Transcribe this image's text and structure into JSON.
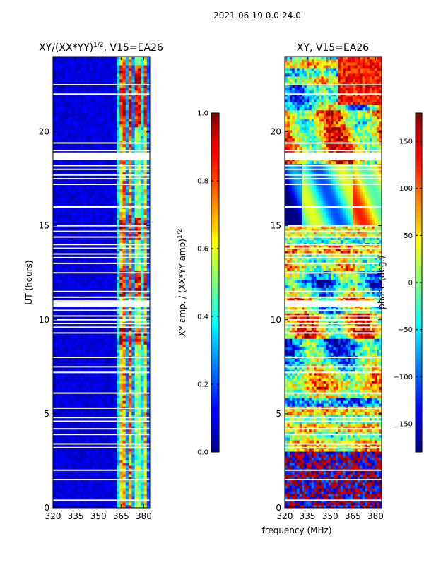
{
  "chart_data": [
    {
      "type": "heatmap",
      "id": "left",
      "title": "XY/(XX*YY)",
      "title_superscript": "1/2",
      "title_suffix": ", V15=EA26",
      "xlabel": "",
      "ylabel": "UT (hours)",
      "xlim": [
        320,
        384
      ],
      "ylim": [
        0,
        24
      ],
      "xticks": [
        {
          "value": 320,
          "label": "320"
        },
        {
          "value": 335,
          "label": "335"
        },
        {
          "value": 350,
          "label": "350"
        },
        {
          "value": 365,
          "label": "365"
        },
        {
          "value": 380,
          "label": "380"
        }
      ],
      "yticks": [
        {
          "value": 0,
          "label": "0"
        },
        {
          "value": 5,
          "label": "5"
        },
        {
          "value": 10,
          "label": "10"
        },
        {
          "value": 15,
          "label": "15"
        },
        {
          "value": 20,
          "label": "20"
        }
      ],
      "colormap": "jet",
      "value_range": [
        0.0,
        1.0
      ],
      "colorbar": {
        "label": "XY amp. / (XX*YY amp)",
        "label_superscript": "1/2",
        "range": [
          0.0,
          1.0
        ],
        "ticks": [
          {
            "value": 0.0,
            "label": "0.0"
          },
          {
            "value": 0.2,
            "label": "0.2"
          },
          {
            "value": 0.4,
            "label": "0.4"
          },
          {
            "value": 0.6,
            "label": "0.6"
          },
          {
            "value": 0.8,
            "label": "0.8"
          },
          {
            "value": 1.0,
            "label": "1.0"
          }
        ]
      },
      "blank_rows_ut": [
        0.4,
        1.5,
        2.0,
        3.2,
        3.4,
        3.9,
        4.2,
        4.6,
        4.8,
        5.3,
        6.1,
        7.2,
        7.5,
        8.0,
        9.3,
        9.6,
        9.8,
        10.0,
        10.2,
        10.5,
        10.8,
        11.0,
        11.2,
        11.5,
        12.5,
        13.0,
        13.3,
        13.5,
        13.8,
        14.0,
        14.4,
        14.7,
        15.0,
        16.0,
        17.2,
        17.5,
        17.7,
        18.0,
        18.2,
        18.7,
        19.0,
        19.4,
        22.0,
        22.5
      ],
      "blank_band_ut": [
        [
          10.7,
          11.0
        ],
        [
          18.5,
          18.9
        ]
      ]
    },
    {
      "type": "heatmap",
      "id": "right",
      "title": "XY, V15=EA26",
      "xlabel": "frequency (MHz)",
      "ylabel": "",
      "xlim": [
        320,
        384
      ],
      "ylim": [
        0,
        24
      ],
      "xticks": [
        {
          "value": 320,
          "label": "320"
        },
        {
          "value": 335,
          "label": "335"
        },
        {
          "value": 350,
          "label": "350"
        },
        {
          "value": 365,
          "label": "365"
        },
        {
          "value": 380,
          "label": "380"
        }
      ],
      "yticks": [
        {
          "value": 0,
          "label": "0"
        },
        {
          "value": 5,
          "label": "5"
        },
        {
          "value": 10,
          "label": "10"
        },
        {
          "value": 15,
          "label": "15"
        },
        {
          "value": 20,
          "label": "20"
        }
      ],
      "colormap": "jet",
      "value_range": [
        -180,
        180
      ],
      "colorbar": {
        "label": "phase (deg.)",
        "range": [
          -180,
          180
        ],
        "ticks": [
          {
            "value": -150,
            "label": "−150"
          },
          {
            "value": -100,
            "label": "−100"
          },
          {
            "value": -50,
            "label": "−50"
          },
          {
            "value": 0,
            "label": "0"
          },
          {
            "value": 50,
            "label": "50"
          },
          {
            "value": 100,
            "label": "100"
          },
          {
            "value": 150,
            "label": "150"
          }
        ]
      },
      "blank_rows_ut": [
        0.4,
        1.5,
        2.0,
        3.2,
        3.4,
        3.9,
        4.2,
        4.6,
        4.8,
        5.3,
        6.1,
        7.2,
        7.5,
        8.0,
        9.3,
        9.6,
        9.8,
        10.0,
        10.2,
        10.5,
        10.8,
        11.0,
        11.2,
        11.5,
        12.5,
        13.0,
        13.3,
        13.5,
        13.8,
        14.0,
        14.4,
        14.7,
        15.0,
        16.0,
        17.2,
        17.5,
        17.7,
        18.0,
        18.2,
        18.7,
        19.0,
        19.4,
        22.0,
        22.5
      ],
      "blank_band_ut": [
        [
          10.7,
          11.0
        ],
        [
          18.5,
          18.9
        ]
      ]
    }
  ],
  "figure": {
    "suptitle": "2021-06-19 0.0-24.0"
  }
}
